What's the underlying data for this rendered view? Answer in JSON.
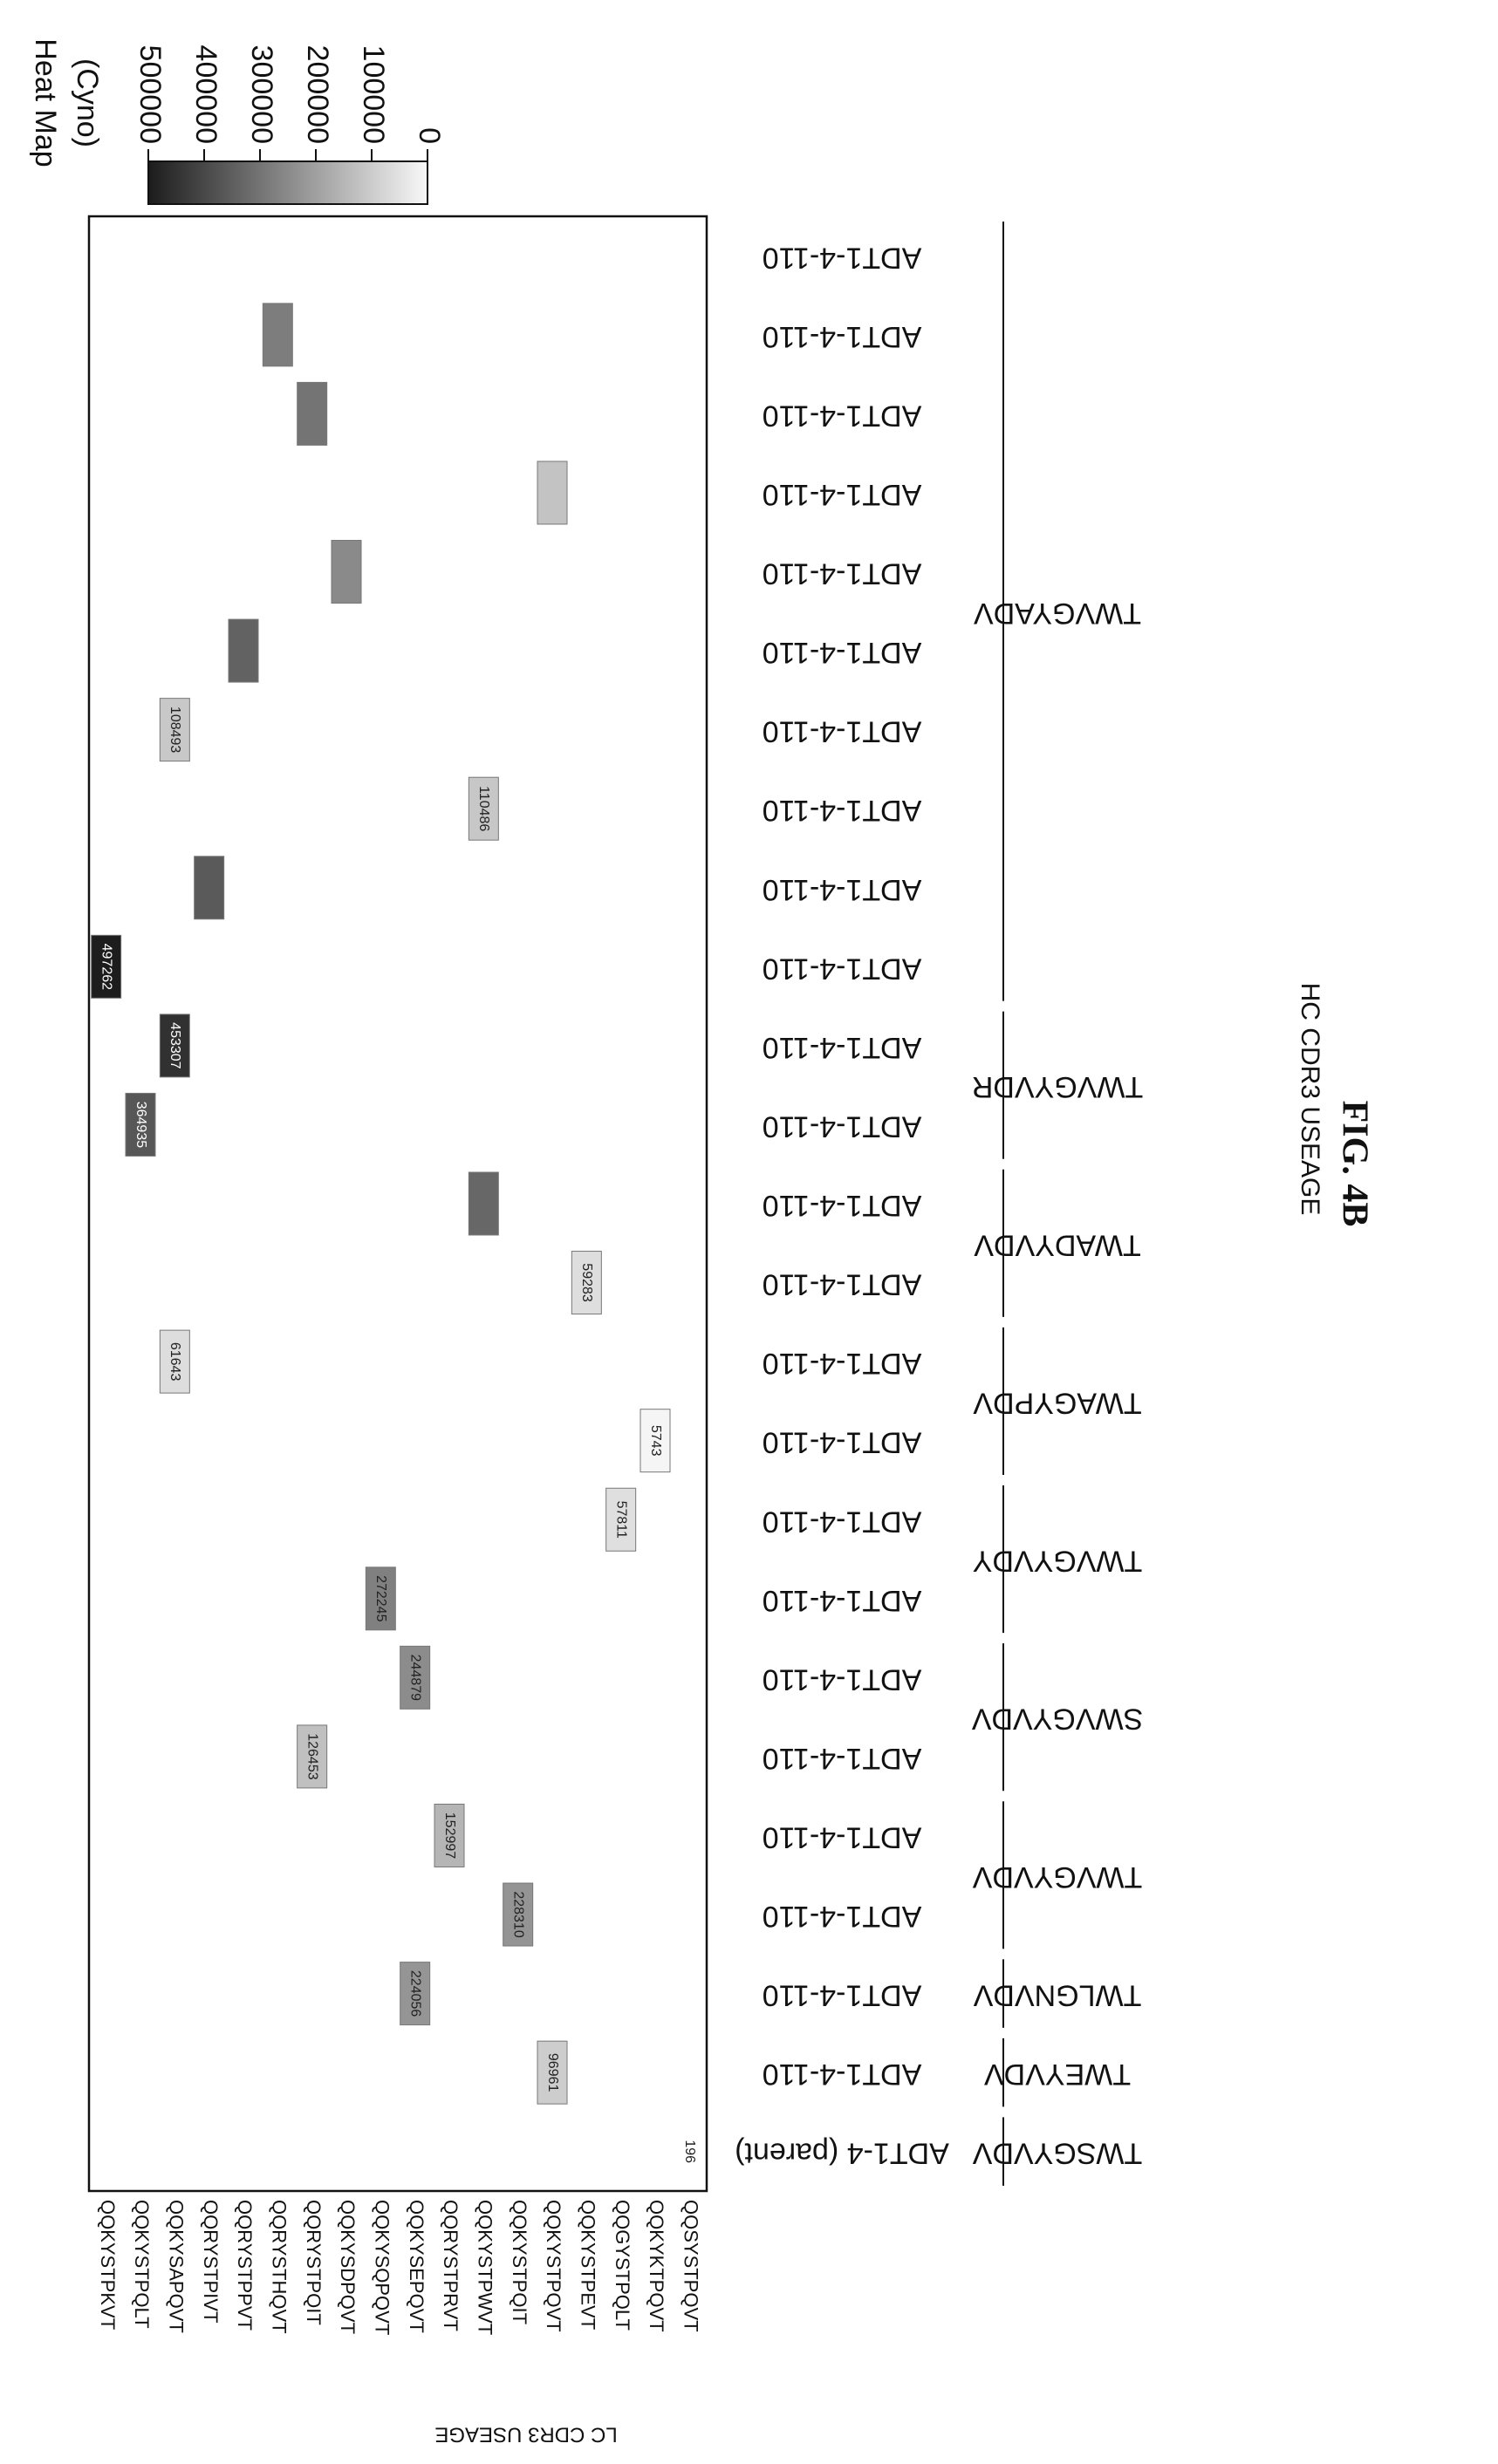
{
  "figure_label": "FIG. 4B",
  "chart_data": {
    "type": "heatmap",
    "legend_title_line1": "Heat Map",
    "legend_title_line2": "(Cyno)",
    "legend_ticks": [
      "500000",
      "400000",
      "300000",
      "200000",
      "100000",
      "0"
    ],
    "legend_range": [
      0,
      500000
    ],
    "ylabel": "LC CDR3 USEAGE",
    "xlabel": "HC CDR3 USEAGE",
    "rows": [
      "QQKYSTPKVT",
      "QQKYSTPQLT",
      "QQKYSAPQVT",
      "QQRYSTPIVT",
      "QQRYSTPPVT",
      "QQRYSTHQVT",
      "QQRYSTPQIT",
      "QQKYSDPQVT",
      "QQKYSQPQVT",
      "QQKYSEPQVT",
      "QQRYSTPRVT",
      "QQKYSTPWVT",
      "QQKYSTPQIT",
      "QQKYSTPQVT",
      "QQKYSTPEVT",
      "QQGYSTPQLT",
      "QQKYKTPQVT",
      "QQSYSTPQVT"
    ],
    "columns": [
      "ADT1-4 (parent)",
      "ADT1-4-110",
      "ADT1-4-110",
      "ADT1-4-110",
      "ADT1-4-110",
      "ADT1-4-110",
      "ADT1-4-110",
      "ADT1-4-110",
      "ADT1-4-110",
      "ADT1-4-110",
      "ADT1-4-110",
      "ADT1-4-110",
      "ADT1-4-110",
      "ADT1-4-110",
      "ADT1-4-110",
      "ADT1-4-110",
      "ADT1-4-110",
      "ADT1-4-110",
      "ADT1-4-110",
      "ADT1-4-110",
      "ADT1-4-110",
      "ADT1-4-110",
      "ADT1-4-110",
      "ADT1-4-110",
      "ADT1-4-110"
    ],
    "groups": [
      {
        "label": "TWSGYVDV",
        "start": 0,
        "end": 0
      },
      {
        "label": "TWEYVDV",
        "start": 1,
        "end": 1
      },
      {
        "label": "TWLGNVDV",
        "start": 2,
        "end": 2
      },
      {
        "label": "TWVGYVDV",
        "start": 3,
        "end": 4
      },
      {
        "label": "SWVGYVDV",
        "start": 5,
        "end": 6
      },
      {
        "label": "TWVGYVDY",
        "start": 7,
        "end": 8
      },
      {
        "label": "TWAGYPDV",
        "start": 9,
        "end": 10
      },
      {
        "label": "TWADYVDV",
        "start": 11,
        "end": 12
      },
      {
        "label": "TWVGYVDR",
        "start": 13,
        "end": 14
      },
      {
        "label": "TWVGYADV",
        "start": 15,
        "end": 24
      }
    ],
    "cells": [
      {
        "col": 0,
        "row": 17,
        "value": 196,
        "label": "196"
      },
      {
        "col": 1,
        "row": 13,
        "value": 96961,
        "label": "96961"
      },
      {
        "col": 2,
        "row": 9,
        "value": 224056,
        "label": "224056"
      },
      {
        "col": 3,
        "row": 12,
        "value": 228310,
        "label": "228310"
      },
      {
        "col": 4,
        "row": 10,
        "value": 152997,
        "label": "152997"
      },
      {
        "col": 5,
        "row": 6,
        "value": 126453,
        "label": "126453"
      },
      {
        "col": 6,
        "row": 9,
        "value": 244879,
        "label": "244879"
      },
      {
        "col": 7,
        "row": 8,
        "value": 272245,
        "label": "272245"
      },
      {
        "col": 8,
        "row": 15,
        "value": 57811,
        "label": "57811"
      },
      {
        "col": 9,
        "row": 16,
        "value": 5743,
        "label": "5743"
      },
      {
        "col": 10,
        "row": 2,
        "value": 61643,
        "label": "61643"
      },
      {
        "col": 11,
        "row": 14,
        "value": 59283,
        "label": "59283"
      },
      {
        "col": 12,
        "row": 11,
        "value": 330000,
        "label": ""
      },
      {
        "col": 13,
        "row": 1,
        "value": 364935,
        "label": "364935"
      },
      {
        "col": 14,
        "row": 2,
        "value": 453307,
        "label": "453307"
      },
      {
        "col": 15,
        "row": 0,
        "value": 497262,
        "label": "497262"
      },
      {
        "col": 16,
        "row": 3,
        "value": 360000,
        "label": ""
      },
      {
        "col": 17,
        "row": 11,
        "value": 110486,
        "label": "110486"
      },
      {
        "col": 18,
        "row": 2,
        "value": 108493,
        "label": "108493"
      },
      {
        "col": 19,
        "row": 4,
        "value": 340000,
        "label": ""
      },
      {
        "col": 20,
        "row": 7,
        "value": 250000,
        "label": ""
      },
      {
        "col": 21,
        "row": 13,
        "value": 120000,
        "label": ""
      },
      {
        "col": 22,
        "row": 6,
        "value": 300000,
        "label": ""
      },
      {
        "col": 23,
        "row": 5,
        "value": 280000,
        "label": ""
      }
    ]
  }
}
